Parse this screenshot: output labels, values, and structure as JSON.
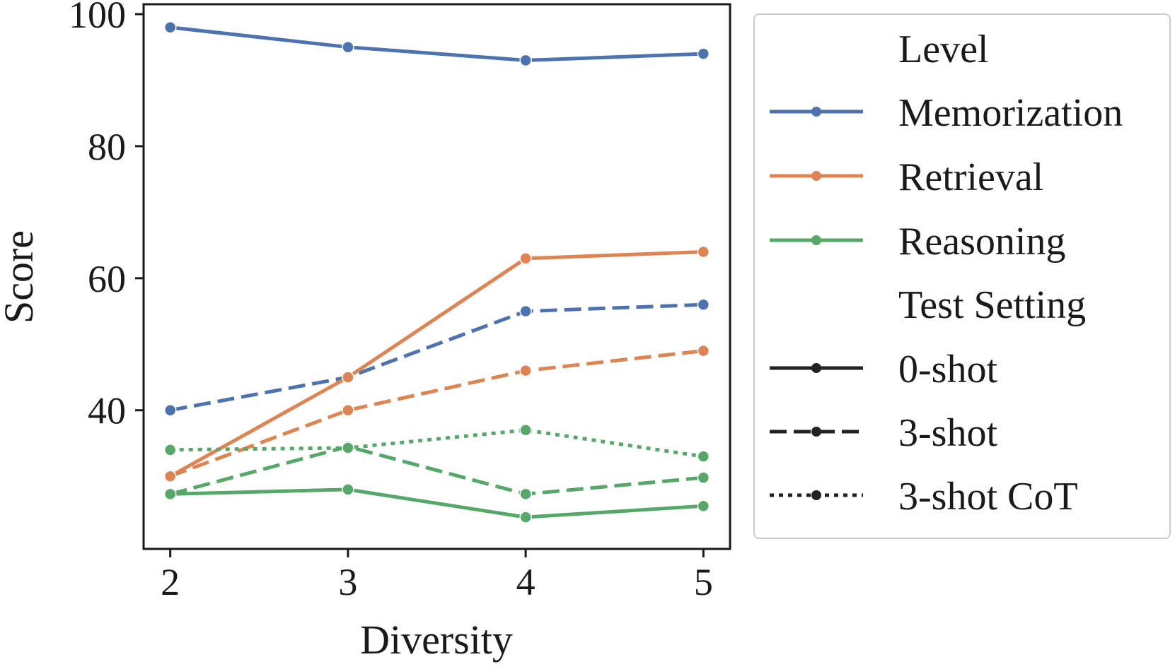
{
  "chart_data": {
    "type": "line",
    "title": "",
    "xlabel": "Diversity",
    "ylabel": "Score",
    "x": [
      2,
      3,
      4,
      5
    ],
    "x_tick_labels": [
      "2",
      "3",
      "4",
      "5"
    ],
    "xlim": [
      1.85,
      5.15
    ],
    "ylim": [
      19,
      101.5
    ],
    "y_ticks": [
      40,
      60,
      80,
      100
    ],
    "y_tick_labels": [
      "40",
      "60",
      "80",
      "100"
    ],
    "grid": false,
    "legend_position": "outside-right",
    "colors": {
      "Memorization": "#4c72b0",
      "Retrieval": "#dd8452",
      "Reasoning": "#55a868",
      "neutral": "#222222"
    },
    "series": [
      {
        "name": "Memorization 0-shot",
        "level": "Memorization",
        "setting": "0-shot",
        "values": [
          98,
          95,
          93,
          94
        ]
      },
      {
        "name": "Memorization 3-shot",
        "level": "Memorization",
        "setting": "3-shot",
        "values": [
          40,
          45,
          55,
          56
        ]
      },
      {
        "name": "Retrieval 0-shot",
        "level": "Retrieval",
        "setting": "0-shot",
        "values": [
          30,
          45,
          63,
          64
        ]
      },
      {
        "name": "Retrieval 3-shot",
        "level": "Retrieval",
        "setting": "3-shot",
        "values": [
          30,
          40,
          46,
          49
        ]
      },
      {
        "name": "Reasoning 0-shot",
        "level": "Reasoning",
        "setting": "0-shot",
        "values": [
          27.3,
          28,
          23.8,
          25.5
        ]
      },
      {
        "name": "Reasoning 3-shot",
        "level": "Reasoning",
        "setting": "3-shot",
        "values": [
          27.3,
          34.5,
          27.3,
          29.8
        ]
      },
      {
        "name": "Reasoning 3-shot CoT",
        "level": "Reasoning",
        "setting": "3-shot CoT",
        "values": [
          34,
          34.3,
          37,
          33
        ]
      }
    ],
    "legend": {
      "level_title": "Level",
      "levels": [
        "Memorization",
        "Retrieval",
        "Reasoning"
      ],
      "setting_title": "Test Setting",
      "settings": [
        "0-shot",
        "3-shot",
        "3-shot CoT"
      ]
    }
  }
}
